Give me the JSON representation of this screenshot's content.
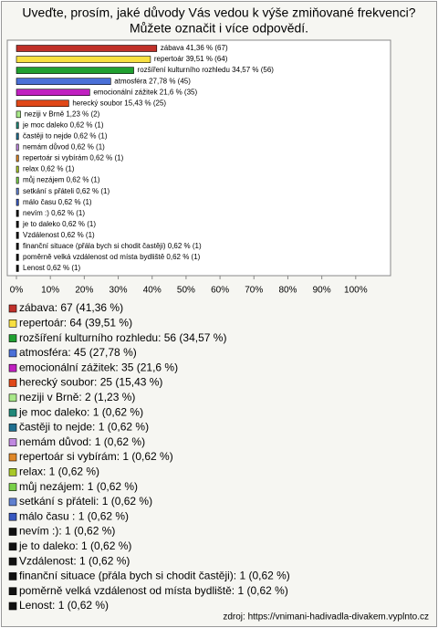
{
  "chart_data": {
    "type": "bar",
    "orientation": "horizontal",
    "title": "Uveďte, prosím, jaké důvody Vás vedou k výše zmiňované frekvenci?",
    "subtitle": "Můžete označit i více odpovědí.",
    "values": [
      41.36,
      39.51,
      34.57,
      27.78,
      21.6,
      15.43,
      1.23,
      0.62,
      0.62,
      0.62,
      0.62,
      0.62,
      0.62,
      0.62,
      0.62,
      0.62,
      0.62,
      0.62,
      0.62,
      0.62,
      0.62
    ],
    "value_labels": [
      "zábava 41,36 % (67)",
      "repertoár 39,51 % (64)",
      "rozšíření kulturního rozhledu 34,57 % (56)",
      "atmosféra 27,78 % (45)",
      "emocionální zážitek 21,6 % (35)",
      "herecký soubor 15,43 % (25)",
      "neziji v Brně 1,23 % (2)",
      "je moc daleko 0,62 % (1)",
      "častěji to nejde 0,62 % (1)",
      "nemám důvod 0,62 % (1)",
      "repertoár si vybírám 0,62 % (1)",
      "relax 0,62 % (1)",
      "můj nezájem 0,62 % (1)",
      "setkání s přáteli 0,62 % (1)",
      "málo času  0,62 % (1)",
      "nevím :) 0,62 % (1)",
      "je to daleko 0,62 % (1)",
      "Vzdálenost 0,62 % (1)",
      "finanční situace (přála bych si chodit častěji) 0,62 % (1)",
      "poměrně velká vzdálenost od místa bydliště 0,62 % (1)",
      "Lenost 0,62 % (1)"
    ],
    "legend_labels": [
      "zábava: 67 (41,36 %)",
      "repertoár: 64 (39,51 %)",
      "rozšíření kulturního rozhledu: 56 (34,57 %)",
      "atmosféra: 45 (27,78 %)",
      "herecký soubor: 25 (15,43 %)",
      "neziji v Brně: 2 (1,23 %)",
      "je moc daleko: 1 (0,62 %)",
      "častěji to nejde: 1 (0,62 %)",
      "nemám důvod: 1 (0,62 %)",
      "repertoár si vybírám: 1 (0,62 %)",
      "relax: 1 (0,62 %)",
      "můj nezájem: 1 (0,62 %)",
      "setkání s přáteli: 1 (0,62 %)",
      "málo času : 1 (0,62 %)",
      "nevím :): 1 (0,62 %)",
      "je to daleko: 1 (0,62 %)",
      "Vzdálenost: 1 (0,62 %)",
      "finanční situace (přála bych si chodit častěji): 1 (0,62 %)",
      "poměrně velká vzdálenost od místa bydliště: 1 (0,62 %)",
      "Lenost: 1 (0,62 %)"
    ],
    "legend_extra": "emocionální zážitek: 35 (21,6 %)",
    "colors": [
      "#c0302a",
      "#f8e040",
      "#20a030",
      "#4a70d8",
      "#c020c0",
      "#e04818",
      "#a8e888",
      "#208878",
      "#207090",
      "#c088e0",
      "#e08828",
      "#a8c828",
      "#78d048",
      "#6080d0",
      "#3858c0",
      "#111111",
      "#111111",
      "#111111",
      "#111111",
      "#111111",
      "#111111"
    ],
    "xlim": [
      0,
      110
    ],
    "xticks": [
      {
        "value": 0,
        "label": "0%"
      },
      {
        "value": 10,
        "label": "10%"
      },
      {
        "value": 20,
        "label": "20%"
      },
      {
        "value": 30,
        "label": "30%"
      },
      {
        "value": 40,
        "label": "40%"
      },
      {
        "value": 50,
        "label": "50%"
      },
      {
        "value": 60,
        "label": "60%"
      },
      {
        "value": 70,
        "label": "70%"
      },
      {
        "value": 80,
        "label": "80%"
      },
      {
        "value": 90,
        "label": "90%"
      },
      {
        "value": 100,
        "label": "100%"
      }
    ],
    "source": "zdroj: https://vnimani-hadivadla-divakem.vyplnto.cz"
  }
}
